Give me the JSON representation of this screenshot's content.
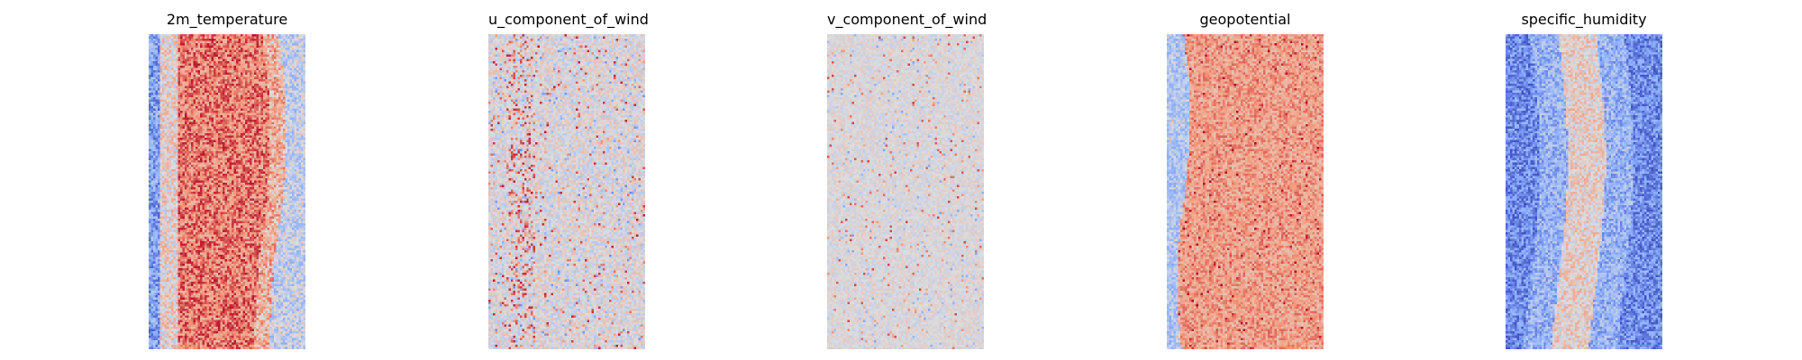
{
  "chart_data": [
    {
      "type": "heatmap",
      "title": "2m_temperature",
      "colormap": "coolwarm",
      "axes": "off",
      "pattern": "warm-central-band"
    },
    {
      "type": "heatmap",
      "title": "u_component_of_wind",
      "colormap": "coolwarm",
      "axes": "off",
      "pattern": "near-neutral-speckle"
    },
    {
      "type": "heatmap",
      "title": "v_component_of_wind",
      "colormap": "coolwarm",
      "axes": "off",
      "pattern": "near-neutral-sparse"
    },
    {
      "type": "heatmap",
      "title": "geopotential",
      "colormap": "coolwarm",
      "axes": "off",
      "pattern": "warm-broad-band"
    },
    {
      "type": "heatmap",
      "title": "specific_humidity",
      "colormap": "coolwarm",
      "axes": "off",
      "pattern": "cool-with-warm-streak"
    }
  ]
}
